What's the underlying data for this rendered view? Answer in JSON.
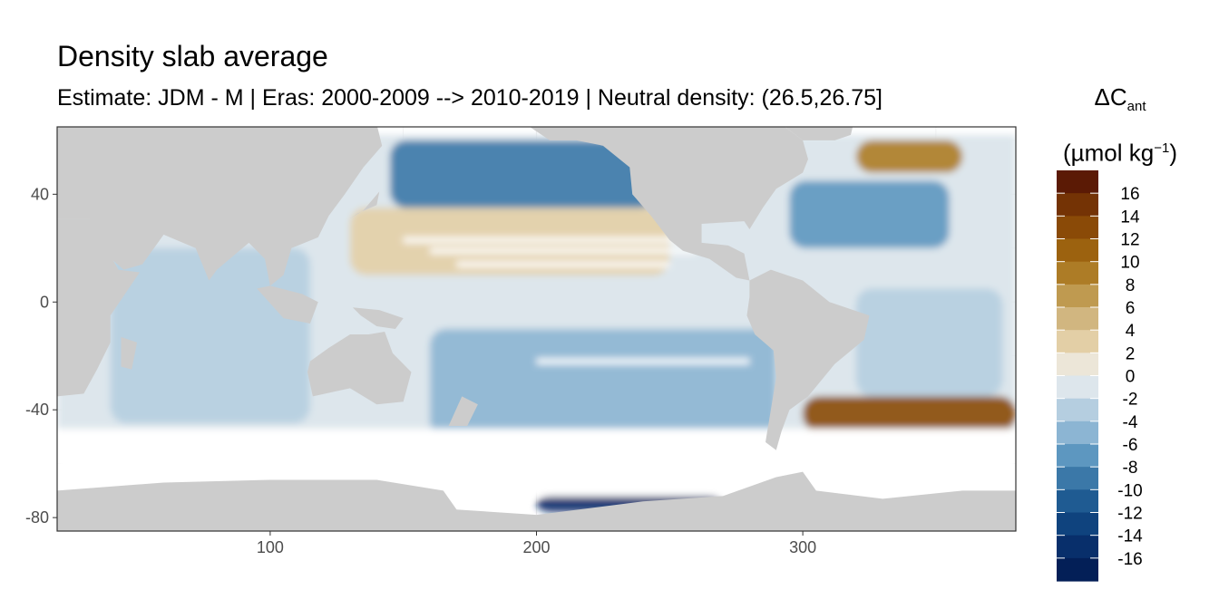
{
  "chart_data": {
    "type": "heatmap",
    "title": "Density slab average",
    "subtitle": "Estimate: JDM - M | Eras: 2000-2009 --> 2010-2019 | Neutral density: (26.5,26.75]",
    "xlabel": "",
    "ylabel": "",
    "xlim": [
      20,
      380
    ],
    "ylim": [
      -85,
      65
    ],
    "x_ticks": [
      100,
      200,
      300
    ],
    "y_ticks": [
      40,
      0,
      -40,
      -80
    ],
    "grid": true,
    "legend": {
      "position": "right",
      "title_main": "ΔC",
      "title_sub": "ant",
      "unit_open": "(µmol kg",
      "unit_sup": "−1",
      "unit_close": ")",
      "labels": [
        "16",
        "14",
        "12",
        "10",
        "8",
        "6",
        "4",
        "2",
        "0",
        "-2",
        "-4",
        "-6",
        "-8",
        "-10",
        "-12",
        "-14",
        "-16"
      ],
      "colors": [
        "#5b1a05",
        "#743305",
        "#8a4a07",
        "#9c620f",
        "#ad7c26",
        "#bf9a50",
        "#d1b680",
        "#e3cfa6",
        "#ece6d8",
        "#dde6ec",
        "#b5cee0",
        "#8cb5d3",
        "#5d97c0",
        "#3b78a8",
        "#1f5b92",
        "#0f437e",
        "#082f6b",
        "#031f57"
      ]
    },
    "land_color": "#cccccc",
    "no_data_color": "#ffffff",
    "panel_border": "#333333",
    "regions": [
      {
        "name": "north-pacific-subpolar",
        "lon": [
          145,
          245
        ],
        "lat": [
          35,
          60
        ],
        "value": -9
      },
      {
        "name": "north-pacific-subtropical",
        "lon": [
          130,
          250
        ],
        "lat": [
          10,
          35
        ],
        "value": 2
      },
      {
        "name": "equatorial-pacific",
        "lon": [
          130,
          280
        ],
        "lat": [
          -10,
          10
        ],
        "value": -1
      },
      {
        "name": "south-pacific",
        "lon": [
          160,
          290
        ],
        "lat": [
          -50,
          -10
        ],
        "value": -6
      },
      {
        "name": "indian-ocean",
        "lon": [
          40,
          115
        ],
        "lat": [
          -45,
          20
        ],
        "value": -4
      },
      {
        "name": "north-atlantic",
        "lon": [
          295,
          355
        ],
        "lat": [
          20,
          45
        ],
        "value": -7
      },
      {
        "name": "subpolar-north-atlantic",
        "lon": [
          320,
          360
        ],
        "lat": [
          48,
          60
        ],
        "value": 9
      },
      {
        "name": "south-atlantic",
        "lon": [
          320,
          375
        ],
        "lat": [
          -35,
          5
        ],
        "value": -3
      },
      {
        "name": "south-atlantic-argentine",
        "lon": [
          300,
          380
        ],
        "lat": [
          -48,
          -35
        ],
        "value": 13
      },
      {
        "name": "ross-sea-margin",
        "lon": [
          200,
          270
        ],
        "lat": [
          -78,
          -72
        ],
        "value": -15
      }
    ]
  }
}
